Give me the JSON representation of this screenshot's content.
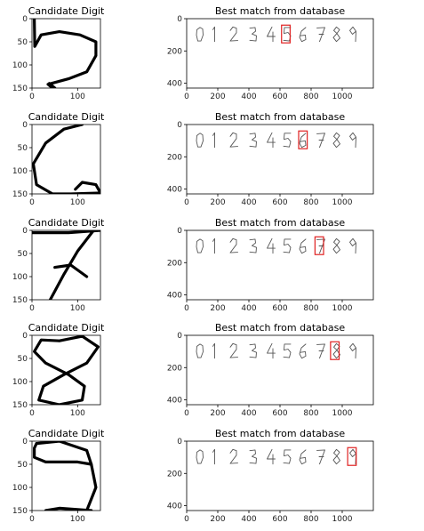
{
  "figure": {
    "left_title": "Candidate Digit",
    "right_title": "Best match from database",
    "database_digits": [
      "0",
      "1",
      "2",
      "3",
      "4",
      "5",
      "6",
      "7",
      "8",
      "9"
    ]
  },
  "chart_data": [
    {
      "type": "image",
      "title": "Candidate Digit",
      "xlim": [
        0,
        150
      ],
      "ylim": [
        150,
        0
      ],
      "xticks": [
        0,
        100
      ],
      "yticks": [
        0,
        50,
        100,
        150
      ],
      "candidate_digit": "5",
      "strokes": [
        [
          [
            5,
            0
          ],
          [
            6,
            60
          ],
          [
            20,
            35
          ],
          [
            60,
            28
          ],
          [
            105,
            35
          ],
          [
            140,
            50
          ],
          [
            140,
            80
          ],
          [
            120,
            115
          ],
          [
            80,
            130
          ],
          [
            35,
            142
          ],
          [
            45,
            150
          ]
        ],
        [
          [
            38,
            140
          ],
          [
            50,
            150
          ]
        ]
      ]
    },
    {
      "type": "image",
      "title": "Best match from database",
      "xlim": [
        0,
        1200
      ],
      "ylim": [
        430,
        0
      ],
      "xticks": [
        0,
        200,
        400,
        600,
        800,
        1000
      ],
      "yticks": [
        0,
        200,
        400
      ],
      "matched_digit": "5",
      "match_box": {
        "x0": 610,
        "y0": 40,
        "x1": 665,
        "y1": 150
      }
    },
    {
      "type": "image",
      "title": "Candidate Digit",
      "xlim": [
        0,
        150
      ],
      "ylim": [
        150,
        0
      ],
      "xticks": [
        0,
        100
      ],
      "yticks": [
        0,
        50,
        100,
        150
      ],
      "candidate_digit": "6",
      "strokes": [
        [
          [
            110,
            0
          ],
          [
            70,
            10
          ],
          [
            30,
            40
          ],
          [
            3,
            85
          ],
          [
            10,
            130
          ],
          [
            45,
            150
          ],
          [
            85,
            150
          ],
          [
            150,
            148
          ],
          [
            140,
            130
          ],
          [
            110,
            125
          ],
          [
            95,
            140
          ]
        ]
      ]
    },
    {
      "type": "image",
      "title": "Best match from database",
      "xlim": [
        0,
        1200
      ],
      "ylim": [
        430,
        0
      ],
      "xticks": [
        0,
        200,
        400,
        600,
        800,
        1000
      ],
      "yticks": [
        0,
        200,
        400
      ],
      "matched_digit": "6",
      "match_box": {
        "x0": 720,
        "y0": 40,
        "x1": 775,
        "y1": 150
      }
    },
    {
      "type": "image",
      "title": "Candidate Digit",
      "xlim": [
        0,
        150
      ],
      "ylim": [
        150,
        0
      ],
      "xticks": [
        0,
        100
      ],
      "yticks": [
        0,
        50,
        100,
        150
      ],
      "candidate_digit": "7",
      "strokes": [
        [
          [
            0,
            5
          ],
          [
            80,
            5
          ],
          [
            150,
            0
          ]
        ],
        [
          [
            135,
            0
          ],
          [
            100,
            45
          ],
          [
            70,
            95
          ],
          [
            40,
            150
          ]
        ],
        [
          [
            50,
            80
          ],
          [
            85,
            75
          ],
          [
            120,
            100
          ]
        ]
      ]
    },
    {
      "type": "image",
      "title": "Best match from database",
      "xlim": [
        0,
        1200
      ],
      "ylim": [
        430,
        0
      ],
      "xticks": [
        0,
        200,
        400,
        600,
        800,
        1000
      ],
      "yticks": [
        0,
        200,
        400
      ],
      "matched_digit": "7",
      "match_box": {
        "x0": 825,
        "y0": 40,
        "x1": 880,
        "y1": 150
      }
    },
    {
      "type": "image",
      "title": "Candidate Digit",
      "xlim": [
        0,
        150
      ],
      "ylim": [
        150,
        0
      ],
      "xticks": [
        0,
        100
      ],
      "yticks": [
        0,
        50,
        100,
        150
      ],
      "candidate_digit": "8",
      "strokes": [
        [
          [
            60,
            12
          ],
          [
            110,
            2
          ],
          [
            145,
            25
          ],
          [
            120,
            60
          ],
          [
            70,
            85
          ],
          [
            25,
            110
          ],
          [
            15,
            140
          ],
          [
            60,
            150
          ],
          [
            110,
            140
          ],
          [
            115,
            110
          ],
          [
            80,
            85
          ],
          [
            30,
            60
          ],
          [
            5,
            35
          ],
          [
            20,
            10
          ],
          [
            60,
            12
          ]
        ]
      ]
    },
    {
      "type": "image",
      "title": "Best match from database",
      "xlim": [
        0,
        1200
      ],
      "ylim": [
        430,
        0
      ],
      "xticks": [
        0,
        200,
        400,
        600,
        800,
        1000
      ],
      "yticks": [
        0,
        200,
        400
      ],
      "matched_digit": "8",
      "match_box": {
        "x0": 925,
        "y0": 40,
        "x1": 980,
        "y1": 150
      }
    },
    {
      "type": "image",
      "title": "Candidate Digit",
      "xlim": [
        0,
        150
      ],
      "ylim": [
        150,
        0
      ],
      "xticks": [
        0,
        100
      ],
      "yticks": [
        0,
        50,
        100,
        150
      ],
      "candidate_digit": "9",
      "strokes": [
        [
          [
            10,
            5
          ],
          [
            60,
            0
          ],
          [
            120,
            20
          ],
          [
            130,
            50
          ],
          [
            100,
            45
          ],
          [
            60,
            45
          ],
          [
            30,
            45
          ],
          [
            5,
            35
          ],
          [
            5,
            15
          ],
          [
            10,
            5
          ]
        ],
        [
          [
            130,
            50
          ],
          [
            140,
            100
          ],
          [
            120,
            150
          ]
        ],
        [
          [
            30,
            150
          ],
          [
            60,
            145
          ],
          [
            130,
            150
          ]
        ]
      ]
    },
    {
      "type": "image",
      "title": "Best match from database",
      "xlim": [
        0,
        1200
      ],
      "ylim": [
        430,
        0
      ],
      "xticks": [
        0,
        200,
        400,
        600,
        800,
        1000
      ],
      "yticks": [
        0,
        200,
        400
      ],
      "matched_digit": "9",
      "match_box": {
        "x0": 1035,
        "y0": 40,
        "x1": 1090,
        "y1": 150
      }
    }
  ]
}
